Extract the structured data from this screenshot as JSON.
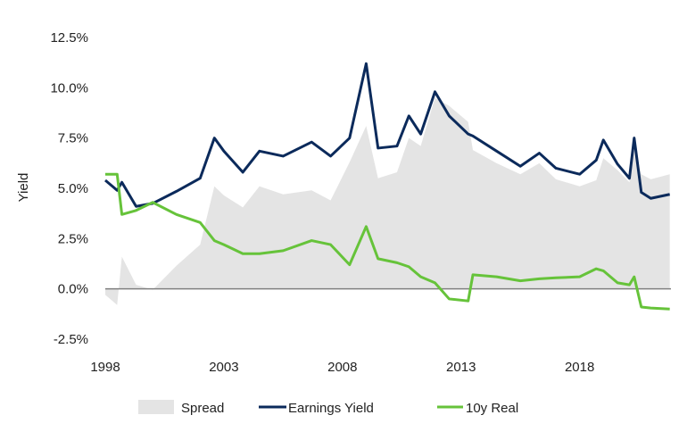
{
  "chart_data": {
    "type": "line",
    "title": "",
    "xlabel": "",
    "ylabel": "Yield",
    "xlim": [
      1998,
      2021.85
    ],
    "ylim": [
      -2.5,
      12.5
    ],
    "x_ticks": [
      1998,
      2003,
      2008,
      2013,
      2018
    ],
    "x_tick_labels": [
      "1998",
      "2003",
      "2008",
      "2013",
      "2018"
    ],
    "y_ticks": [
      12.5,
      10.0,
      7.5,
      5.0,
      2.5,
      0.0,
      -2.5
    ],
    "y_tick_labels": [
      "12.5%",
      "10.0%",
      "7.5%",
      "5.0%",
      "2.5%",
      "0.0%",
      "-2.5%"
    ],
    "grid": false,
    "legend_position": "bottom",
    "x": [
      1998,
      1998.5,
      1998.7,
      1999.3,
      2000,
      2001,
      2002,
      2002.6,
      2003,
      2003.8,
      2004.5,
      2005.5,
      2006.7,
      2007.5,
      2008.3,
      2009,
      2009.5,
      2010.3,
      2010.8,
      2011.3,
      2011.9,
      2012.5,
      2013.3,
      2013.5,
      2014.5,
      2015.5,
      2016.3,
      2017,
      2018,
      2018.7,
      2019,
      2019.6,
      2020.1,
      2020.3,
      2020.6,
      2021,
      2021.8
    ],
    "series": [
      {
        "name": "Spread",
        "kind": "area",
        "color": "#e4e4e4",
        "values": [
          -0.3,
          -0.8,
          1.6,
          0.2,
          -0.05,
          1.15,
          2.2,
          5.1,
          4.65,
          4.05,
          5.1,
          4.7,
          4.9,
          4.4,
          6.3,
          8.1,
          5.5,
          5.8,
          7.5,
          7.1,
          9.5,
          9.1,
          8.3,
          6.9,
          6.25,
          5.7,
          6.25,
          5.45,
          5.1,
          5.4,
          6.5,
          5.9,
          5.3,
          6.9,
          5.7,
          5.45,
          5.7
        ]
      },
      {
        "name": "Earnings Yield",
        "kind": "line",
        "color": "#0b2a5b",
        "values": [
          5.4,
          4.9,
          5.3,
          4.1,
          4.25,
          4.85,
          5.5,
          7.5,
          6.85,
          5.8,
          6.85,
          6.6,
          7.3,
          6.6,
          7.5,
          11.2,
          7.0,
          7.1,
          8.6,
          7.7,
          9.8,
          8.6,
          7.7,
          7.6,
          6.85,
          6.1,
          6.75,
          6.0,
          5.7,
          6.4,
          7.4,
          6.2,
          5.5,
          7.5,
          4.8,
          4.5,
          4.7
        ]
      },
      {
        "name": "10y Real",
        "kind": "line",
        "color": "#66c33a",
        "values": [
          5.7,
          5.7,
          3.7,
          3.9,
          4.3,
          3.7,
          3.3,
          2.4,
          2.2,
          1.75,
          1.75,
          1.9,
          2.4,
          2.2,
          1.2,
          3.1,
          1.5,
          1.3,
          1.1,
          0.6,
          0.3,
          -0.5,
          -0.6,
          0.7,
          0.6,
          0.4,
          0.5,
          0.55,
          0.6,
          1.0,
          0.9,
          0.3,
          0.2,
          0.6,
          -0.9,
          -0.95,
          -1.0
        ]
      }
    ]
  }
}
